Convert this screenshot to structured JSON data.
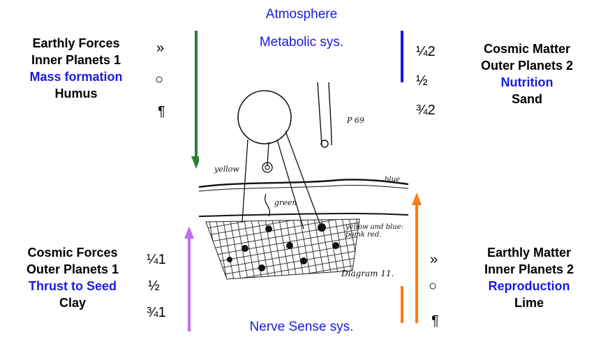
{
  "titles": {
    "top": "Atmosphere",
    "top_sub": "Metabolic sys.",
    "bottom": "Nerve Sense sys."
  },
  "left_top": {
    "line1": "Earthly Forces",
    "line2": "Inner Planets 1",
    "line3": "Mass formation",
    "line4": "Humus",
    "symbols": [
      "»",
      "○",
      "¶"
    ]
  },
  "right_top": {
    "line1": "Cosmic  Matter",
    "line2": "Outer Planets 2",
    "line3": "Nutrition",
    "line4": "Sand",
    "fractions": [
      "¼2",
      "½",
      "¾2"
    ]
  },
  "left_bottom": {
    "line1": "Cosmic  Forces",
    "line2": "Outer Planets 1",
    "line3": "Thrust to Seed",
    "line4": "Clay",
    "fractions": [
      "¼1",
      "½",
      "¾1"
    ]
  },
  "right_bottom": {
    "line1": "Earthly Matter",
    "line2": "Inner Planets 2",
    "line3": "Reproduction",
    "line4": "Lime",
    "symbols": [
      "»",
      "○",
      "¶"
    ]
  },
  "sketch": {
    "label_yellow": "yellow",
    "label_blue": "blue",
    "label_green": "green",
    "label_yellow_blue": "yellow and blue: pomk red.",
    "label_diagram": "Diagram 11.",
    "label_corner": "P 69"
  },
  "colors": {
    "title_blue": "#1a1adf",
    "arrow_green": "#2e7d32",
    "arrow_blue": "#1010f0",
    "arrow_purple": "#c070f0",
    "arrow_orange": "#ff7a12"
  }
}
